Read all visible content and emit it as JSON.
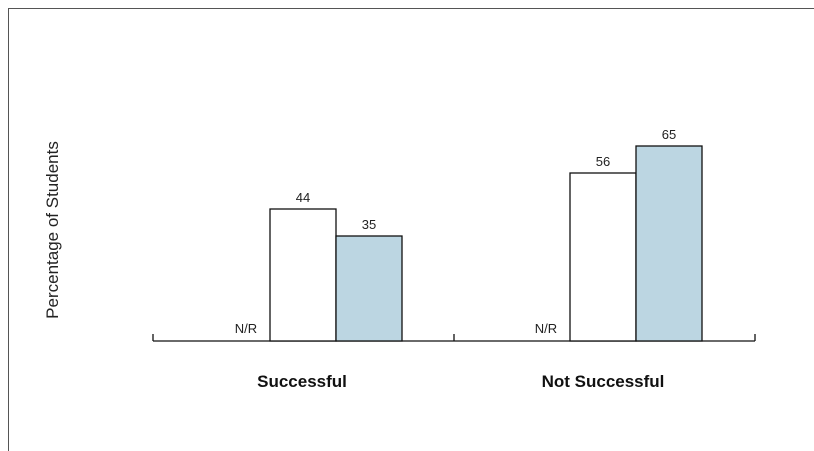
{
  "chart_data": {
    "type": "bar",
    "title": "",
    "xlabel": "",
    "ylabel": "Percentage of Students",
    "categories": [
      "Successful",
      "Not Successful"
    ],
    "series": [
      {
        "values": [
          null,
          null
        ],
        "na_label": "N/R"
      },
      {
        "values": [
          44,
          56
        ]
      },
      {
        "values": [
          35,
          65
        ]
      }
    ],
    "ylim": [
      0,
      100
    ],
    "grid": false,
    "legend": "none",
    "colors": [
      "#ffffff",
      "#ffffff",
      "#bcd6e2"
    ],
    "edge_color": "#111111"
  }
}
